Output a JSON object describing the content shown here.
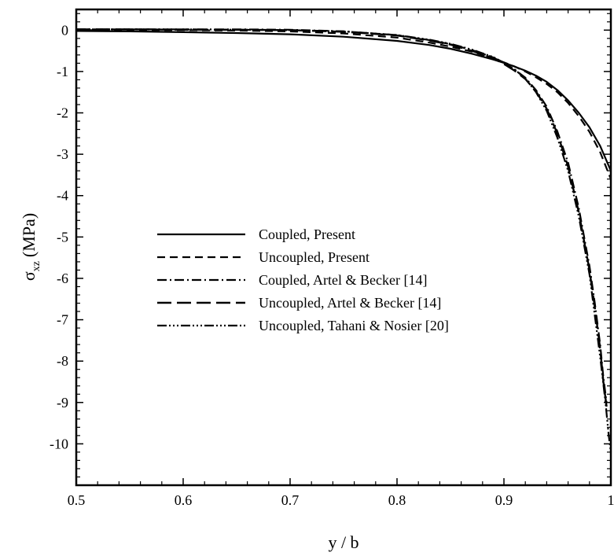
{
  "chart_data": {
    "type": "line",
    "xlabel": "y / b",
    "ylabel": {
      "symbol": "σ",
      "subscript": "xz",
      "unit": "(MPa)"
    },
    "xlim": [
      0.5,
      1.0
    ],
    "ylim": [
      -11,
      0.5
    ],
    "x_ticks": [
      0.5,
      0.6,
      0.7,
      0.8,
      0.9,
      1
    ],
    "x_tick_labels": [
      "0.5",
      "0.6",
      "0.7",
      "0.8",
      "0.9",
      "1"
    ],
    "y_ticks": [
      0,
      -1,
      -2,
      -3,
      -4,
      -5,
      -6,
      -7,
      -8,
      -9,
      -10
    ],
    "y_tick_labels": [
      "0",
      "-1",
      "-2",
      "-3",
      "-4",
      "-5",
      "-6",
      "-7",
      "-8",
      "-9",
      "-10"
    ],
    "grid": false,
    "legend_position": "center-left",
    "series": [
      {
        "name": "Coupled, Present",
        "dash": "",
        "width": 2.2,
        "x": [
          0.5,
          0.55,
          0.6,
          0.65,
          0.7,
          0.75,
          0.8,
          0.83,
          0.85,
          0.87,
          0.89,
          0.9,
          0.91,
          0.92,
          0.93,
          0.94,
          0.95,
          0.96,
          0.97,
          0.98,
          0.99,
          1.0
        ],
        "y": [
          -0.02,
          -0.03,
          -0.05,
          -0.07,
          -0.1,
          -0.16,
          -0.26,
          -0.36,
          -0.45,
          -0.57,
          -0.71,
          -0.79,
          -0.88,
          -0.98,
          -1.1,
          -1.25,
          -1.45,
          -1.7,
          -2.0,
          -2.35,
          -2.8,
          -3.4
        ]
      },
      {
        "name": "Uncoupled, Present",
        "dash": "10,6",
        "width": 2.2,
        "x": [
          0.5,
          0.55,
          0.6,
          0.65,
          0.7,
          0.75,
          0.8,
          0.83,
          0.85,
          0.87,
          0.89,
          0.9,
          0.91,
          0.92,
          0.93,
          0.94,
          0.95,
          0.96,
          0.97,
          0.98,
          0.99,
          1.0
        ],
        "y": [
          0.0,
          0.0,
          0.0,
          -0.01,
          -0.03,
          -0.08,
          -0.18,
          -0.3,
          -0.4,
          -0.52,
          -0.68,
          -0.78,
          -0.88,
          -1.0,
          -1.14,
          -1.3,
          -1.5,
          -1.76,
          -2.08,
          -2.46,
          -2.95,
          -3.6
        ]
      },
      {
        "name": "Coupled, Artel & Becker  [14]",
        "dash": "12,4,2,4",
        "width": 2.2,
        "x": [
          0.5,
          0.55,
          0.6,
          0.65,
          0.7,
          0.75,
          0.8,
          0.83,
          0.85,
          0.87,
          0.89,
          0.9,
          0.91,
          0.92,
          0.93,
          0.94,
          0.95,
          0.96,
          0.97,
          0.98,
          0.985,
          0.99,
          0.993,
          0.996
        ],
        "y": [
          0.02,
          0.02,
          0.02,
          0.02,
          0.01,
          -0.03,
          -0.12,
          -0.24,
          -0.34,
          -0.48,
          -0.66,
          -0.8,
          -0.95,
          -1.15,
          -1.45,
          -1.85,
          -2.45,
          -3.2,
          -4.3,
          -5.7,
          -6.6,
          -7.6,
          -8.4,
          -9.0
        ]
      },
      {
        "name": "Uncoupled, Artel & Becker [14]",
        "dash": "18,7",
        "width": 2.4,
        "x": [
          0.5,
          0.55,
          0.6,
          0.65,
          0.7,
          0.75,
          0.8,
          0.83,
          0.85,
          0.87,
          0.89,
          0.9,
          0.91,
          0.92,
          0.93,
          0.94,
          0.95,
          0.96,
          0.97,
          0.98,
          0.985,
          0.99,
          0.993,
          0.996
        ],
        "y": [
          0.02,
          0.02,
          0.01,
          0.01,
          0.0,
          -0.04,
          -0.13,
          -0.25,
          -0.35,
          -0.5,
          -0.68,
          -0.82,
          -0.98,
          -1.18,
          -1.48,
          -1.9,
          -2.5,
          -3.3,
          -4.4,
          -5.8,
          -6.7,
          -7.7,
          -8.5,
          -9.1
        ]
      },
      {
        "name": "Uncoupled, Tahani & Nosier [20]",
        "dash": "12,3,2,3,2,3,2,3",
        "width": 2.2,
        "x": [
          0.5,
          0.55,
          0.6,
          0.65,
          0.7,
          0.75,
          0.8,
          0.83,
          0.85,
          0.87,
          0.89,
          0.9,
          0.91,
          0.92,
          0.93,
          0.94,
          0.95,
          0.96,
          0.97,
          0.98,
          0.985,
          0.99,
          0.995,
          0.998,
          1.0
        ],
        "y": [
          0.02,
          0.02,
          0.02,
          0.01,
          0.0,
          -0.03,
          -0.12,
          -0.23,
          -0.33,
          -0.47,
          -0.65,
          -0.79,
          -0.95,
          -1.17,
          -1.5,
          -1.95,
          -2.6,
          -3.4,
          -4.5,
          -5.9,
          -6.9,
          -7.9,
          -9.0,
          -9.8,
          -10.2
        ]
      }
    ]
  }
}
